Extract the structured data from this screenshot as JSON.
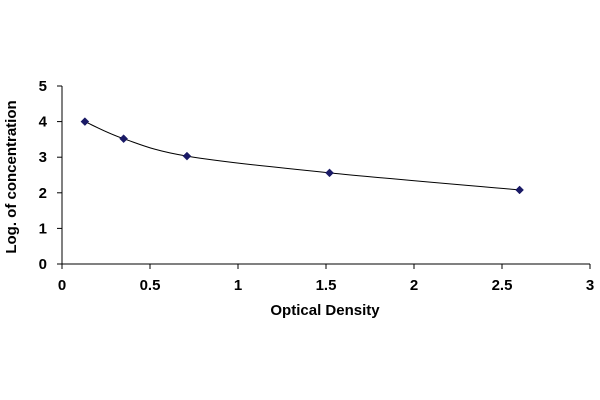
{
  "chart_data": {
    "type": "scatter",
    "title": "",
    "xlabel": "Optical Density",
    "ylabel": "Log. of concentration",
    "xlim": [
      0,
      3
    ],
    "ylim": [
      0,
      5
    ],
    "x_ticks": [
      "0",
      "0.5",
      "1",
      "1.5",
      "2",
      "2.5",
      "3"
    ],
    "y_ticks": [
      "0",
      "1",
      "2",
      "3",
      "4",
      "5"
    ],
    "grid": false,
    "legend": "none",
    "series": [
      {
        "x": [
          0.13,
          0.35,
          0.71,
          1.52,
          2.6
        ],
        "y": [
          4.0,
          3.52,
          3.03,
          2.56,
          2.08
        ],
        "marker": "diamond",
        "color": "#1a1a66",
        "fit_line": "smooth curve"
      }
    ]
  }
}
